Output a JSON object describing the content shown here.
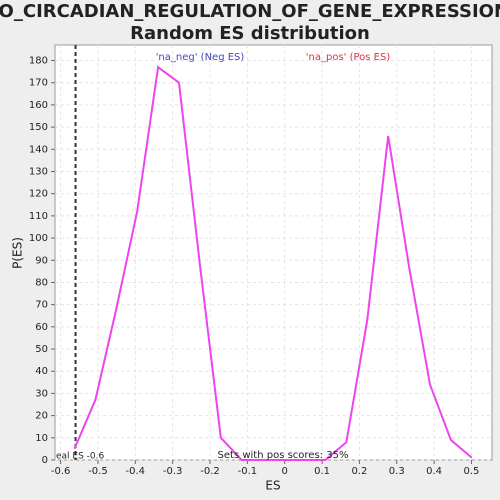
{
  "chart_data": {
    "type": "line",
    "title": "GO_CIRCADIAN_REGULATION_OF_GENE_EXPRESSION:",
    "subtitle": "Random ES distribution",
    "x_label": "ES",
    "y_label": "P(ES)",
    "x": [
      -0.563,
      -0.507,
      -0.451,
      -0.395,
      -0.339,
      -0.283,
      -0.227,
      -0.171,
      -0.115,
      -0.059,
      -0.003,
      0.053,
      0.109,
      0.165,
      0.221,
      0.277,
      0.333,
      0.389,
      0.445,
      0.501
    ],
    "values": [
      5,
      27,
      68,
      112,
      177,
      170,
      88,
      10,
      0,
      0,
      0,
      0,
      0,
      8,
      63,
      146,
      87,
      34,
      9,
      1
    ],
    "color": "#ee44ee",
    "xlim": [
      -0.615,
      0.555
    ],
    "ylim": [
      0,
      187
    ],
    "xticks": [
      -0.6,
      -0.5,
      -0.4,
      -0.3,
      -0.2,
      -0.1,
      0,
      0.1,
      0.2,
      0.3,
      0.4,
      0.5
    ],
    "yticks": [
      0,
      10,
      20,
      30,
      40,
      50,
      60,
      70,
      80,
      90,
      100,
      110,
      120,
      130,
      140,
      150,
      160,
      170,
      180
    ],
    "grid": true,
    "vline": {
      "x": -0.56,
      "label": "eal ES -0.6"
    },
    "annotations": [
      "'na_neg' (Neg ES)",
      "'na_pos' (Pos ES)",
      "Sets with pos scores: 35%"
    ]
  }
}
